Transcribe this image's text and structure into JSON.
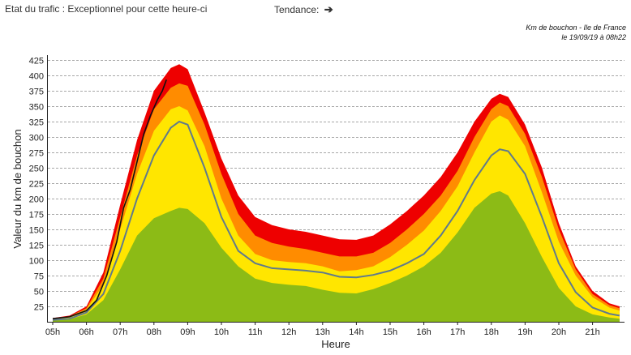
{
  "status": {
    "label": "Etat du trafic : Exceptionnel pour cette heure-ci",
    "trend_label": "Tendance:",
    "trend_icon": "arrow-right-icon",
    "trend_glyph": "➔"
  },
  "caption": {
    "line1": "Km de bouchon - Ile de France",
    "line2": "le 19/09/19 à 08h22"
  },
  "colors": {
    "record": "#ee0000",
    "high": "#ff8c00",
    "medium": "#ffe600",
    "low": "#8cbb16",
    "average": "#607a8c",
    "today": "#111111",
    "grid": "#8a8a8a"
  },
  "chart_data": {
    "type": "area",
    "title": "",
    "xlabel": "Heure",
    "ylabel": "Valeur du  km de bouchon",
    "ylim": [
      0,
      425
    ],
    "xlim": [
      5,
      21.9
    ],
    "grid": true,
    "yticks": [
      25,
      50,
      75,
      100,
      125,
      150,
      175,
      200,
      225,
      250,
      275,
      300,
      325,
      350,
      375,
      400,
      425
    ],
    "xticks": [
      "05h",
      "06h",
      "07h",
      "08h",
      "09h",
      "10h",
      "11h",
      "12h",
      "13h",
      "14h",
      "15h",
      "16h",
      "17h",
      "18h",
      "19h",
      "20h",
      "21h"
    ],
    "x": [
      5,
      5.5,
      6,
      6.5,
      7,
      7.5,
      8,
      8.5,
      8.75,
      9,
      9.5,
      10,
      10.5,
      11,
      11.5,
      12,
      12.5,
      13,
      13.5,
      14,
      14.5,
      15,
      15.5,
      16,
      16.5,
      17,
      17.5,
      18,
      18.25,
      18.5,
      19,
      19.5,
      20,
      20.5,
      21,
      21.5,
      21.8
    ],
    "series": [
      {
        "values": [
          6,
          10,
          25,
          80,
          190,
          295,
          375,
          412,
          418,
          410,
          340,
          265,
          205,
          170,
          157,
          150,
          146,
          140,
          134,
          133,
          140,
          158,
          180,
          205,
          235,
          275,
          325,
          362,
          370,
          365,
          320,
          250,
          160,
          90,
          50,
          30,
          25
        ]
      },
      {
        "values": [
          5,
          9,
          22,
          70,
          170,
          270,
          345,
          380,
          387,
          383,
          320,
          240,
          175,
          140,
          128,
          122,
          118,
          112,
          106,
          106,
          112,
          128,
          150,
          175,
          205,
          245,
          300,
          345,
          356,
          350,
          305,
          235,
          150,
          85,
          45,
          27,
          22
        ]
      },
      {
        "values": [
          4,
          8,
          20,
          60,
          150,
          240,
          310,
          345,
          350,
          343,
          285,
          200,
          140,
          110,
          100,
          97,
          95,
          90,
          82,
          84,
          90,
          105,
          125,
          148,
          180,
          220,
          275,
          325,
          335,
          328,
          285,
          210,
          130,
          75,
          40,
          23,
          18
        ]
      },
      {
        "values": [
          2,
          4,
          12,
          35,
          85,
          140,
          168,
          180,
          185,
          183,
          160,
          120,
          90,
          70,
          63,
          60,
          58,
          52,
          47,
          46,
          53,
          63,
          75,
          90,
          112,
          145,
          185,
          208,
          212,
          205,
          160,
          105,
          55,
          25,
          12,
          7,
          5
        ]
      },
      {
        "values": [
          3,
          5,
          15,
          45,
          115,
          200,
          270,
          315,
          325,
          320,
          250,
          170,
          115,
          95,
          87,
          85,
          83,
          80,
          73,
          72,
          76,
          83,
          95,
          110,
          140,
          180,
          230,
          270,
          280,
          277,
          240,
          170,
          95,
          48,
          23,
          13,
          10
        ]
      },
      {
        "x": [
          5,
          5.5,
          6,
          6.3,
          6.6,
          6.9,
          7.1,
          7.3,
          7.5,
          7.7,
          7.9,
          8.1,
          8.25,
          8.37
        ],
        "values": [
          5,
          8,
          18,
          35,
          75,
          130,
          185,
          215,
          260,
          305,
          335,
          360,
          375,
          393
        ]
      }
    ]
  }
}
